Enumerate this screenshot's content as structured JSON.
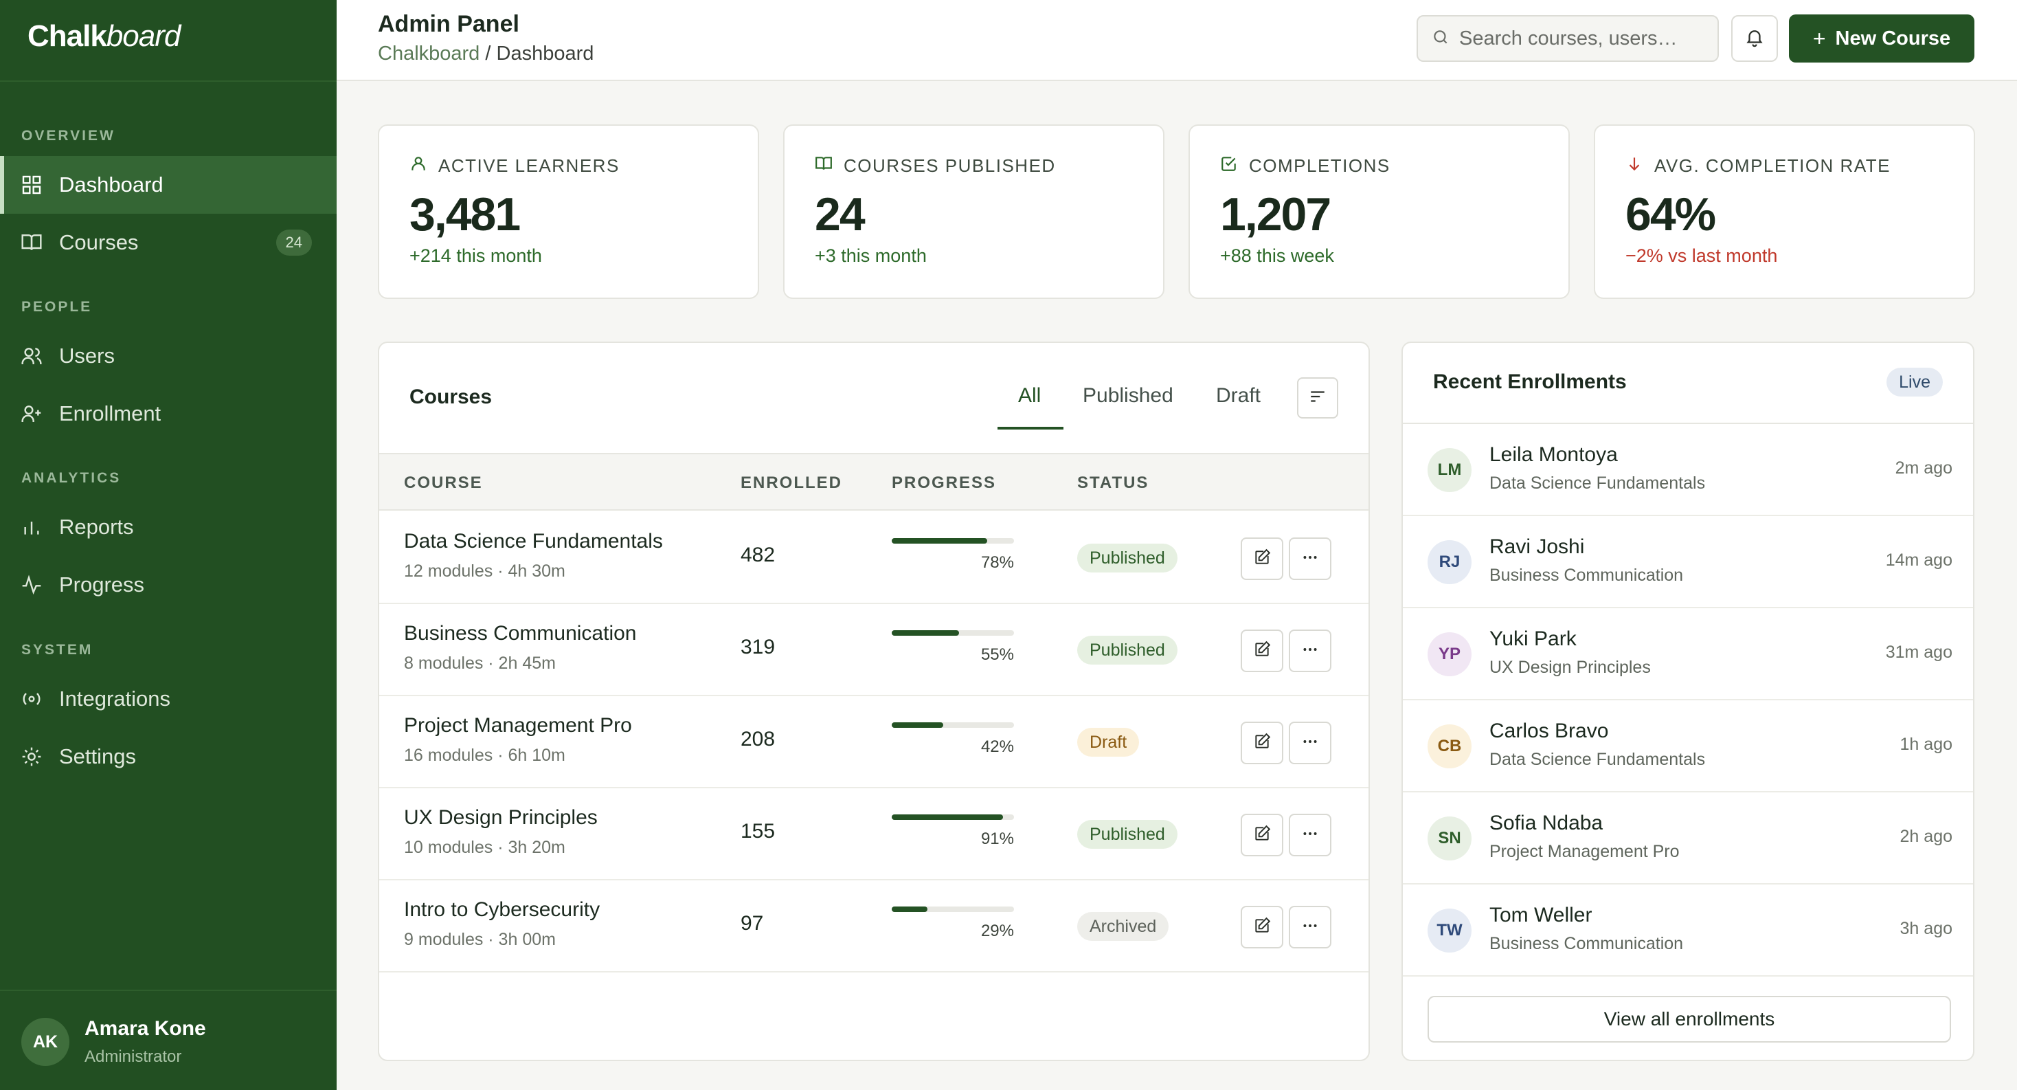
{
  "sidebar": {
    "brand": {
      "bold": "Chalk",
      "italic": "board"
    },
    "sections": [
      {
        "label": "OVERVIEW"
      },
      {
        "label": "PEOPLE"
      },
      {
        "label": "ANALYTICS"
      },
      {
        "label": "SYSTEM"
      }
    ],
    "items": [
      {
        "label": "Dashboard",
        "icon": "grid-icon",
        "active": true
      },
      {
        "label": "Courses",
        "icon": "book-icon",
        "badge": "24"
      },
      {
        "label": "Users",
        "icon": "users-icon"
      },
      {
        "label": "Enrollment",
        "icon": "user-plus-icon"
      },
      {
        "label": "Reports",
        "icon": "bar-chart-icon"
      },
      {
        "label": "Progress",
        "icon": "activity-icon"
      },
      {
        "label": "Integrations",
        "icon": "broadcast-icon"
      },
      {
        "label": "Settings",
        "icon": "gear-icon"
      }
    ],
    "user": {
      "initials": "AK",
      "name": "Amara Kone",
      "role": "Administrator"
    }
  },
  "header": {
    "title": "Admin Panel",
    "breadcrumb": {
      "root": "Chalkboard",
      "separator": "/",
      "current": "Dashboard"
    },
    "search": {
      "placeholder": "Search courses, users…"
    },
    "new_button": {
      "icon": "+",
      "label": "New Course"
    }
  },
  "stats": [
    {
      "label": "ACTIVE LEARNERS",
      "icon": "user-icon",
      "value": "3,481",
      "delta": "+214 this month",
      "trend": "up"
    },
    {
      "label": "COURSES PUBLISHED",
      "icon": "book-icon",
      "value": "24",
      "delta": "+3 this month",
      "trend": "up"
    },
    {
      "label": "COMPLETIONS",
      "icon": "check-square-icon",
      "value": "1,207",
      "delta": "+88 this week",
      "trend": "up"
    },
    {
      "label": "AVG. COMPLETION RATE",
      "icon": "arrow-down-icon",
      "value": "64%",
      "delta": "−2% vs last month",
      "trend": "down"
    }
  ],
  "courses": {
    "title": "Courses",
    "tabs": [
      {
        "label": "All",
        "active": true
      },
      {
        "label": "Published"
      },
      {
        "label": "Draft"
      }
    ],
    "columns": [
      "COURSE",
      "ENROLLED",
      "PROGRESS",
      "STATUS"
    ],
    "rows": [
      {
        "name": "Data Science Fundamentals",
        "meta": "12 modules · 4h 30m",
        "enrolled": "482",
        "progress": 78,
        "progress_label": "78%",
        "status": "Published"
      },
      {
        "name": "Business Communication",
        "meta": "8 modules · 2h 45m",
        "enrolled": "319",
        "progress": 55,
        "progress_label": "55%",
        "status": "Published"
      },
      {
        "name": "Project Management Pro",
        "meta": "16 modules · 6h 10m",
        "enrolled": "208",
        "progress": 42,
        "progress_label": "42%",
        "status": "Draft"
      },
      {
        "name": "UX Design Principles",
        "meta": "10 modules · 3h 20m",
        "enrolled": "155",
        "progress": 91,
        "progress_label": "91%",
        "status": "Published"
      },
      {
        "name": "Intro to Cybersecurity",
        "meta": "9 modules · 3h 00m",
        "enrolled": "97",
        "progress": 29,
        "progress_label": "29%",
        "status": "Archived"
      }
    ]
  },
  "enrollments": {
    "title": "Recent Enrollments",
    "live_label": "Live",
    "items": [
      {
        "initials": "LM",
        "name": "Leila Montoya",
        "course": "Data Science Fundamentals",
        "time": "2m ago",
        "bg": "#e8f0e4",
        "fg": "#2f5e2b"
      },
      {
        "initials": "RJ",
        "name": "Ravi Joshi",
        "course": "Business Communication",
        "time": "14m ago",
        "bg": "#e6ebf4",
        "fg": "#2f4a7a"
      },
      {
        "initials": "YP",
        "name": "Yuki Park",
        "course": "UX Design Principles",
        "time": "31m ago",
        "bg": "#f1e7f4",
        "fg": "#7a3a8a"
      },
      {
        "initials": "CB",
        "name": "Carlos Bravo",
        "course": "Data Science Fundamentals",
        "time": "1h ago",
        "bg": "#fbf1dc",
        "fg": "#8a5a12"
      },
      {
        "initials": "SN",
        "name": "Sofia Ndaba",
        "course": "Project Management Pro",
        "time": "2h ago",
        "bg": "#e8f0e4",
        "fg": "#2f5e2b"
      },
      {
        "initials": "TW",
        "name": "Tom Weller",
        "course": "Business Communication",
        "time": "3h ago",
        "bg": "#e6ebf4",
        "fg": "#2f4a7a"
      }
    ],
    "view_all": "View all enrollments"
  },
  "colors": {
    "brand": "#224f22",
    "accent": "#245224",
    "negative": "#c0392b"
  }
}
